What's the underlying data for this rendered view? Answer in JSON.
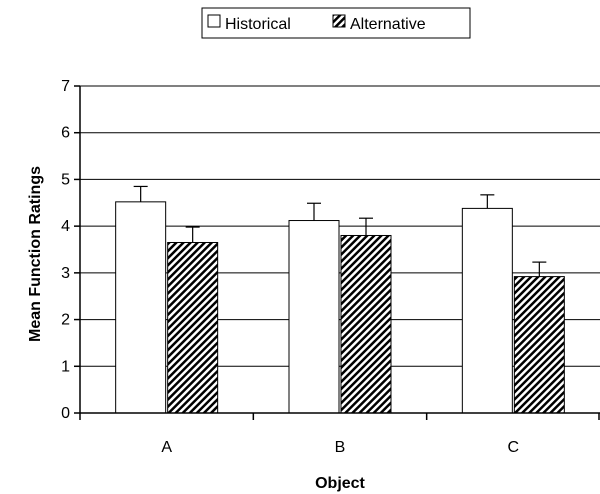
{
  "chart_data": {
    "type": "bar",
    "title": "",
    "xlabel": "Object",
    "ylabel": "Mean Function Ratings",
    "categories": [
      "A",
      "B",
      "C"
    ],
    "ylim": [
      0,
      7
    ],
    "yticks": [
      "0",
      "1",
      "2",
      "3",
      "4",
      "5",
      "6",
      "7"
    ],
    "grid": true,
    "legend_position": "top",
    "series": [
      {
        "name": "Historical",
        "values": [
          4.52,
          4.12,
          4.38
        ],
        "errors": [
          0.33,
          0.37,
          0.29
        ],
        "pattern": "white"
      },
      {
        "name": "Alternative",
        "values": [
          3.65,
          3.8,
          2.92
        ],
        "errors": [
          0.33,
          0.37,
          0.31
        ],
        "pattern": "diagonal-hatch"
      }
    ]
  }
}
